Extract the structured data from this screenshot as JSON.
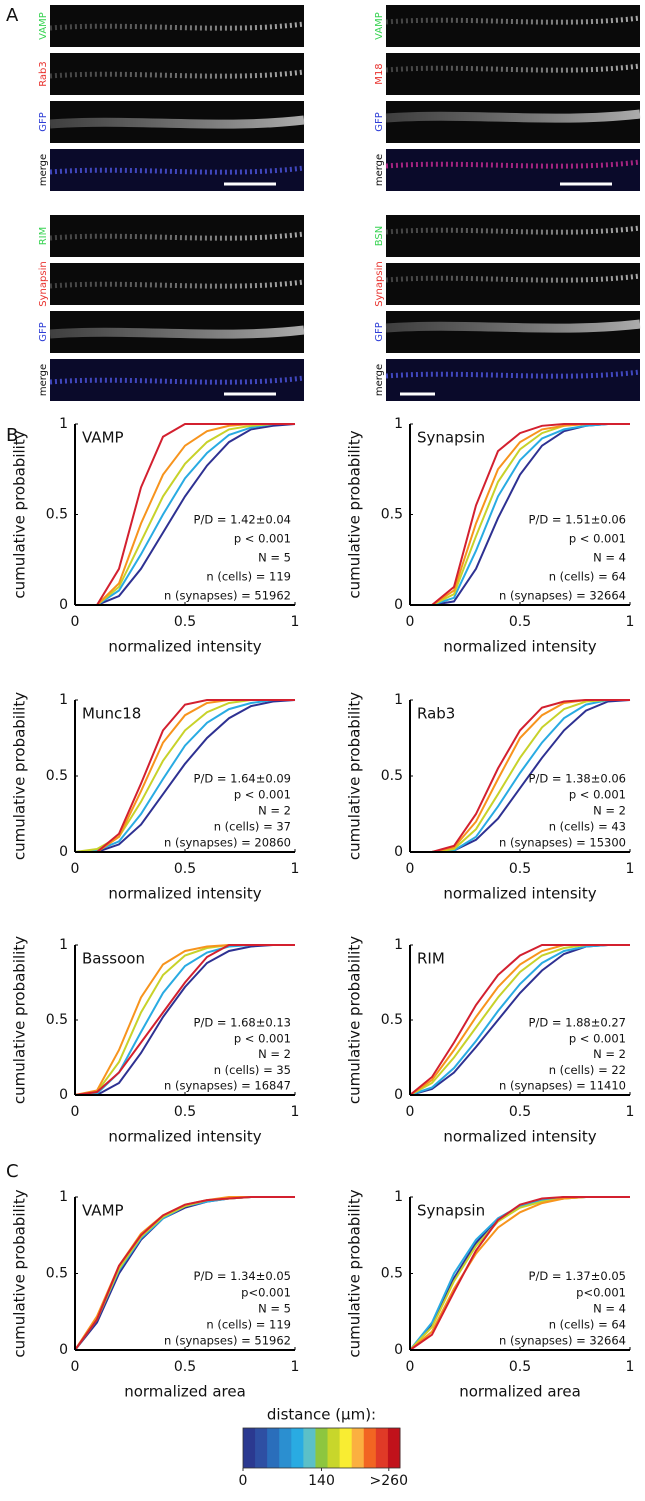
{
  "panels": [
    "A",
    "B",
    "C"
  ],
  "images": [
    [
      "VAMP",
      "Rab3",
      "GFP",
      "merge"
    ],
    [
      "VAMP",
      "M18",
      "GFP",
      "merge"
    ],
    [
      "RIM",
      "Synapsin",
      "GFP",
      "merge"
    ],
    [
      "BSN",
      "Synapsin",
      "GFP",
      "merge"
    ]
  ],
  "colorbar": {
    "title": "distance (μm):",
    "lim": [
      0,
      280
    ],
    "ticks": [
      0,
      140,
      {
        "value": 260,
        "label": ">260"
      }
    ],
    "colors": [
      "#2b3990",
      "#2e4fa3",
      "#2a6ebb",
      "#2b8fd0",
      "#29abe2",
      "#5bc0c8",
      "#8dc63f",
      "#c8d62b",
      "#f9ed32",
      "#fbb040",
      "#f26522",
      "#e03a27",
      "#c1121b"
    ]
  },
  "chart_data": [
    {
      "type": "line",
      "title": "VAMP",
      "xlabel": "normalized intensity",
      "ylabel": "cumulative probability",
      "xlim": [
        0,
        1
      ],
      "ylim": [
        0,
        1
      ],
      "xticks": [
        0,
        0.5,
        1
      ],
      "yticks": [
        0,
        0.5,
        1
      ],
      "annotations": [
        "P/D = 1.42±0.04",
        "p < 0.001",
        "N = 5",
        "n (cells) = 119",
        "n (synapses) = 51962"
      ],
      "x": [
        0,
        0.1,
        0.2,
        0.3,
        0.4,
        0.5,
        0.6,
        0.7,
        0.8,
        0.9,
        1
      ],
      "series": [
        {
          "color": "#2e3192",
          "values": [
            0,
            0,
            0.05,
            0.2,
            0.4,
            0.6,
            0.77,
            0.9,
            0.97,
            0.99,
            1
          ]
        },
        {
          "color": "#29abe2",
          "values": [
            0,
            0,
            0.08,
            0.28,
            0.5,
            0.7,
            0.84,
            0.94,
            0.98,
            1,
            1
          ]
        },
        {
          "color": "#c8d22a",
          "values": [
            0,
            0,
            0.1,
            0.35,
            0.6,
            0.78,
            0.9,
            0.97,
            0.99,
            1,
            1
          ]
        },
        {
          "color": "#f7941d",
          "values": [
            0,
            0,
            0.12,
            0.45,
            0.72,
            0.88,
            0.96,
            0.99,
            1,
            1,
            1
          ]
        },
        {
          "color": "#d3202f",
          "values": [
            0,
            0,
            0.2,
            0.65,
            0.93,
            1,
            1,
            1,
            1,
            1,
            1
          ]
        }
      ]
    },
    {
      "type": "line",
      "title": "Synapsin",
      "xlabel": "normalized intensity",
      "ylabel": "cumulative probability",
      "xlim": [
        0,
        1
      ],
      "ylim": [
        0,
        1
      ],
      "xticks": [
        0,
        0.5,
        1
      ],
      "yticks": [
        0,
        0.5,
        1
      ],
      "annotations": [
        "P/D = 1.51±0.06",
        "p < 0.001",
        "N = 4",
        "n (cells) = 64",
        "n (synapses) = 32664"
      ],
      "x": [
        0,
        0.1,
        0.2,
        0.3,
        0.4,
        0.5,
        0.6,
        0.7,
        0.8,
        0.9,
        1
      ],
      "series": [
        {
          "color": "#2e3192",
          "values": [
            0,
            0,
            0.02,
            0.2,
            0.48,
            0.72,
            0.88,
            0.96,
            0.99,
            1,
            1
          ]
        },
        {
          "color": "#29abe2",
          "values": [
            0,
            0,
            0.04,
            0.3,
            0.6,
            0.8,
            0.92,
            0.97,
            0.99,
            1,
            1
          ]
        },
        {
          "color": "#c8d22a",
          "values": [
            0,
            0,
            0.06,
            0.38,
            0.68,
            0.86,
            0.95,
            0.99,
            1,
            1,
            1
          ]
        },
        {
          "color": "#f7941d",
          "values": [
            0,
            0,
            0.08,
            0.45,
            0.75,
            0.9,
            0.97,
            0.99,
            1,
            1,
            1
          ]
        },
        {
          "color": "#d3202f",
          "values": [
            0,
            0,
            0.1,
            0.55,
            0.85,
            0.95,
            0.99,
            1,
            1,
            1,
            1
          ]
        }
      ]
    },
    {
      "type": "line",
      "title": "Munc18",
      "xlabel": "normalized intensity",
      "ylabel": "cumulative probability",
      "xlim": [
        0,
        1
      ],
      "ylim": [
        0,
        1
      ],
      "xticks": [
        0,
        0.5,
        1
      ],
      "yticks": [
        0,
        0.5,
        1
      ],
      "annotations": [
        "P/D = 1.64±0.09",
        "p < 0.001",
        "N = 2",
        "n (cells) = 37",
        "n (synapses) = 20860"
      ],
      "x": [
        0,
        0.1,
        0.2,
        0.3,
        0.4,
        0.5,
        0.6,
        0.7,
        0.8,
        0.9,
        1
      ],
      "series": [
        {
          "color": "#2e3192",
          "values": [
            0,
            0,
            0.05,
            0.18,
            0.38,
            0.58,
            0.75,
            0.88,
            0.96,
            0.99,
            1
          ]
        },
        {
          "color": "#29abe2",
          "values": [
            0,
            0.01,
            0.07,
            0.25,
            0.48,
            0.7,
            0.85,
            0.94,
            0.98,
            1,
            1
          ]
        },
        {
          "color": "#c8d22a",
          "values": [
            0,
            0.02,
            0.1,
            0.33,
            0.6,
            0.8,
            0.92,
            0.98,
            1,
            1,
            1
          ]
        },
        {
          "color": "#f7941d",
          "values": [
            0,
            0,
            0.1,
            0.4,
            0.72,
            0.9,
            0.98,
            1,
            1,
            1,
            1
          ]
        },
        {
          "color": "#d3202f",
          "values": [
            0,
            0,
            0.12,
            0.45,
            0.8,
            0.97,
            1,
            1,
            1,
            1,
            1
          ]
        }
      ]
    },
    {
      "type": "line",
      "title": "Rab3",
      "xlabel": "normalized intensity",
      "ylabel": "cumulative probability",
      "xlim": [
        0,
        1
      ],
      "ylim": [
        0,
        1
      ],
      "xticks": [
        0,
        0.5,
        1
      ],
      "yticks": [
        0,
        0.5,
        1
      ],
      "annotations": [
        "P/D = 1.38±0.06",
        "p < 0.001",
        "N = 2",
        "n (cells) = 43",
        "n (synapses) = 15300"
      ],
      "x": [
        0,
        0.1,
        0.2,
        0.3,
        0.4,
        0.5,
        0.6,
        0.7,
        0.8,
        0.9,
        1
      ],
      "series": [
        {
          "color": "#2e3192",
          "values": [
            0,
            0,
            0.01,
            0.08,
            0.22,
            0.42,
            0.62,
            0.8,
            0.93,
            0.99,
            1
          ]
        },
        {
          "color": "#29abe2",
          "values": [
            0,
            0,
            0.01,
            0.1,
            0.3,
            0.52,
            0.72,
            0.88,
            0.97,
            1,
            1
          ]
        },
        {
          "color": "#c8d22a",
          "values": [
            0,
            0,
            0.02,
            0.15,
            0.38,
            0.62,
            0.82,
            0.94,
            0.99,
            1,
            1
          ]
        },
        {
          "color": "#f7941d",
          "values": [
            0,
            0,
            0.03,
            0.2,
            0.48,
            0.75,
            0.9,
            0.98,
            1,
            1,
            1
          ]
        },
        {
          "color": "#d3202f",
          "values": [
            0,
            0,
            0.04,
            0.25,
            0.55,
            0.8,
            0.95,
            0.99,
            1,
            1,
            1
          ]
        }
      ]
    },
    {
      "type": "line",
      "title": "Bassoon",
      "xlabel": "normalized intensity",
      "ylabel": "cumulative probability",
      "xlim": [
        0,
        1
      ],
      "ylim": [
        0,
        1
      ],
      "xticks": [
        0,
        0.5,
        1
      ],
      "yticks": [
        0,
        0.5,
        1
      ],
      "annotations": [
        "P/D = 1.68±0.13",
        "p < 0.001",
        "N = 2",
        "n (cells) = 35",
        "n (synapses) = 16847"
      ],
      "x": [
        0,
        0.1,
        0.2,
        0.3,
        0.4,
        0.5,
        0.6,
        0.7,
        0.8,
        0.9,
        1
      ],
      "series": [
        {
          "color": "#2e3192",
          "values": [
            0,
            0,
            0.08,
            0.28,
            0.52,
            0.72,
            0.88,
            0.96,
            0.99,
            1,
            1
          ]
        },
        {
          "color": "#29abe2",
          "values": [
            0,
            0.01,
            0.15,
            0.42,
            0.68,
            0.86,
            0.95,
            0.99,
            1,
            1,
            1
          ]
        },
        {
          "color": "#c8d22a",
          "values": [
            0,
            0.02,
            0.22,
            0.55,
            0.8,
            0.93,
            0.98,
            1,
            1,
            1,
            1
          ]
        },
        {
          "color": "#f7941d",
          "values": [
            0,
            0.03,
            0.3,
            0.65,
            0.87,
            0.96,
            0.99,
            1,
            1,
            1,
            1
          ]
        },
        {
          "color": "#d3202f",
          "values": [
            0,
            0.02,
            0.15,
            0.35,
            0.55,
            0.75,
            0.92,
            1,
            1,
            1,
            1
          ]
        }
      ]
    },
    {
      "type": "line",
      "title": "RIM",
      "xlabel": "normalized intensity",
      "ylabel": "cumulative probability",
      "xlim": [
        0,
        1
      ],
      "ylim": [
        0,
        1
      ],
      "xticks": [
        0,
        0.5,
        1
      ],
      "yticks": [
        0,
        0.5,
        1
      ],
      "annotations": [
        "P/D = 1.88±0.27",
        "p < 0.001",
        "N = 2",
        "n (cells) = 22",
        "n (synapses) = 11410"
      ],
      "x": [
        0,
        0.1,
        0.2,
        0.3,
        0.4,
        0.5,
        0.6,
        0.7,
        0.8,
        0.9,
        1
      ],
      "series": [
        {
          "color": "#2e3192",
          "values": [
            0,
            0.04,
            0.15,
            0.32,
            0.5,
            0.68,
            0.83,
            0.94,
            0.99,
            1,
            1
          ]
        },
        {
          "color": "#29abe2",
          "values": [
            0,
            0.05,
            0.18,
            0.36,
            0.56,
            0.74,
            0.88,
            0.96,
            0.99,
            1,
            1
          ]
        },
        {
          "color": "#c8d22a",
          "values": [
            0,
            0.08,
            0.25,
            0.45,
            0.65,
            0.82,
            0.93,
            0.98,
            1,
            1,
            1
          ]
        },
        {
          "color": "#f7941d",
          "values": [
            0,
            0.1,
            0.3,
            0.52,
            0.72,
            0.87,
            0.96,
            1,
            1,
            1,
            1
          ]
        },
        {
          "color": "#d3202f",
          "values": [
            0,
            0.12,
            0.35,
            0.6,
            0.8,
            0.93,
            1,
            1,
            1,
            1,
            1
          ]
        }
      ]
    },
    {
      "type": "line",
      "title": "VAMP",
      "xlabel": "normalized area",
      "ylabel": "cumulative probability",
      "xlim": [
        0,
        1
      ],
      "ylim": [
        0,
        1
      ],
      "xticks": [
        0,
        0.5,
        1
      ],
      "yticks": [
        0,
        0.5,
        1
      ],
      "annotations": [
        "P/D = 1.34±0.05",
        "p<0.001",
        "N = 5",
        "n (cells) = 119",
        "n (synapses) = 51962"
      ],
      "x": [
        0,
        0.1,
        0.2,
        0.3,
        0.4,
        0.5,
        0.6,
        0.7,
        0.8,
        0.9,
        1
      ],
      "series": [
        {
          "color": "#2e3192",
          "values": [
            0,
            0.18,
            0.5,
            0.72,
            0.86,
            0.93,
            0.97,
            0.99,
            1,
            1,
            1
          ]
        },
        {
          "color": "#29abe2",
          "values": [
            0,
            0.2,
            0.52,
            0.73,
            0.86,
            0.94,
            0.97,
            0.99,
            1,
            1,
            1
          ]
        },
        {
          "color": "#c8d22a",
          "values": [
            0,
            0.2,
            0.53,
            0.74,
            0.87,
            0.94,
            0.98,
            0.99,
            1,
            1,
            1
          ]
        },
        {
          "color": "#f7941d",
          "values": [
            0,
            0.22,
            0.55,
            0.76,
            0.88,
            0.95,
            0.98,
            1,
            1,
            1,
            1
          ]
        },
        {
          "color": "#d3202f",
          "values": [
            0,
            0.2,
            0.55,
            0.75,
            0.88,
            0.95,
            0.98,
            0.99,
            1,
            1,
            1
          ]
        }
      ]
    },
    {
      "type": "line",
      "title": "Synapsin",
      "xlabel": "normalized area",
      "ylabel": "cumulative probability",
      "xlim": [
        0,
        1
      ],
      "ylim": [
        0,
        1
      ],
      "xticks": [
        0,
        0.5,
        1
      ],
      "yticks": [
        0,
        0.5,
        1
      ],
      "annotations": [
        "P/D = 1.37±0.05",
        "p<0.001",
        "N = 4",
        "n (cells) = 64",
        "n (synapses) = 32664"
      ],
      "x": [
        0,
        0.1,
        0.2,
        0.3,
        0.4,
        0.5,
        0.6,
        0.7,
        0.8,
        0.9,
        1
      ],
      "series": [
        {
          "color": "#2e3192",
          "values": [
            0,
            0.16,
            0.47,
            0.7,
            0.86,
            0.94,
            0.98,
            1,
            1,
            1,
            1
          ]
        },
        {
          "color": "#29abe2",
          "values": [
            0,
            0.18,
            0.5,
            0.72,
            0.86,
            0.94,
            0.98,
            0.99,
            1,
            1,
            1
          ]
        },
        {
          "color": "#c8d22a",
          "values": [
            0,
            0.15,
            0.45,
            0.68,
            0.84,
            0.93,
            0.97,
            0.99,
            1,
            1,
            1
          ]
        },
        {
          "color": "#f7941d",
          "values": [
            0,
            0.12,
            0.4,
            0.63,
            0.8,
            0.9,
            0.96,
            0.99,
            1,
            1,
            1
          ]
        },
        {
          "color": "#d3202f",
          "values": [
            0,
            0.1,
            0.38,
            0.65,
            0.85,
            0.95,
            0.99,
            1,
            1,
            1,
            1
          ]
        }
      ]
    }
  ]
}
